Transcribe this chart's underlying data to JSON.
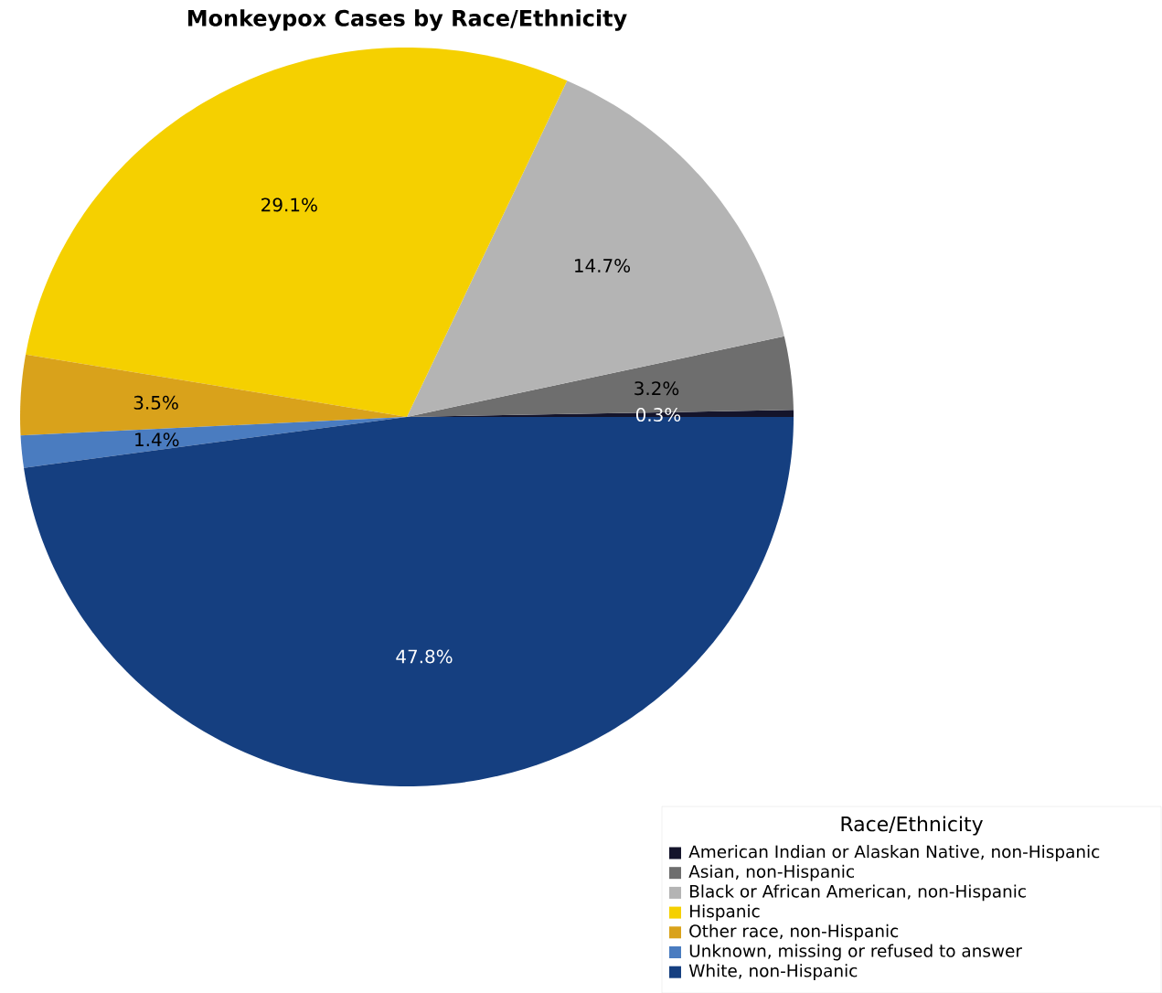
{
  "chart_data": {
    "type": "pie",
    "title": "Monkeypox Cases by Race/Ethnicity",
    "legend_title": "Race/Ethnicity",
    "categories": [
      "American Indian or Alaskan Native, non-Hispanic",
      "Asian, non-Hispanic",
      "Black or African American, non-Hispanic",
      "Hispanic",
      "Other race, non-Hispanic",
      "Unknown, missing or refused to answer",
      "White, non-Hispanic"
    ],
    "values": [
      0.3,
      3.2,
      14.7,
      29.1,
      3.5,
      1.4,
      47.8
    ],
    "value_labels": [
      "0.3%",
      "3.2%",
      "14.7%",
      "29.1%",
      "3.5%",
      "1.4%",
      "47.8%"
    ],
    "colors": [
      "#14142b",
      "#6e6e6e",
      "#b4b4b4",
      "#f5d000",
      "#d9a21b",
      "#4a7cc0",
      "#153f80"
    ],
    "legend": "bottom right"
  }
}
